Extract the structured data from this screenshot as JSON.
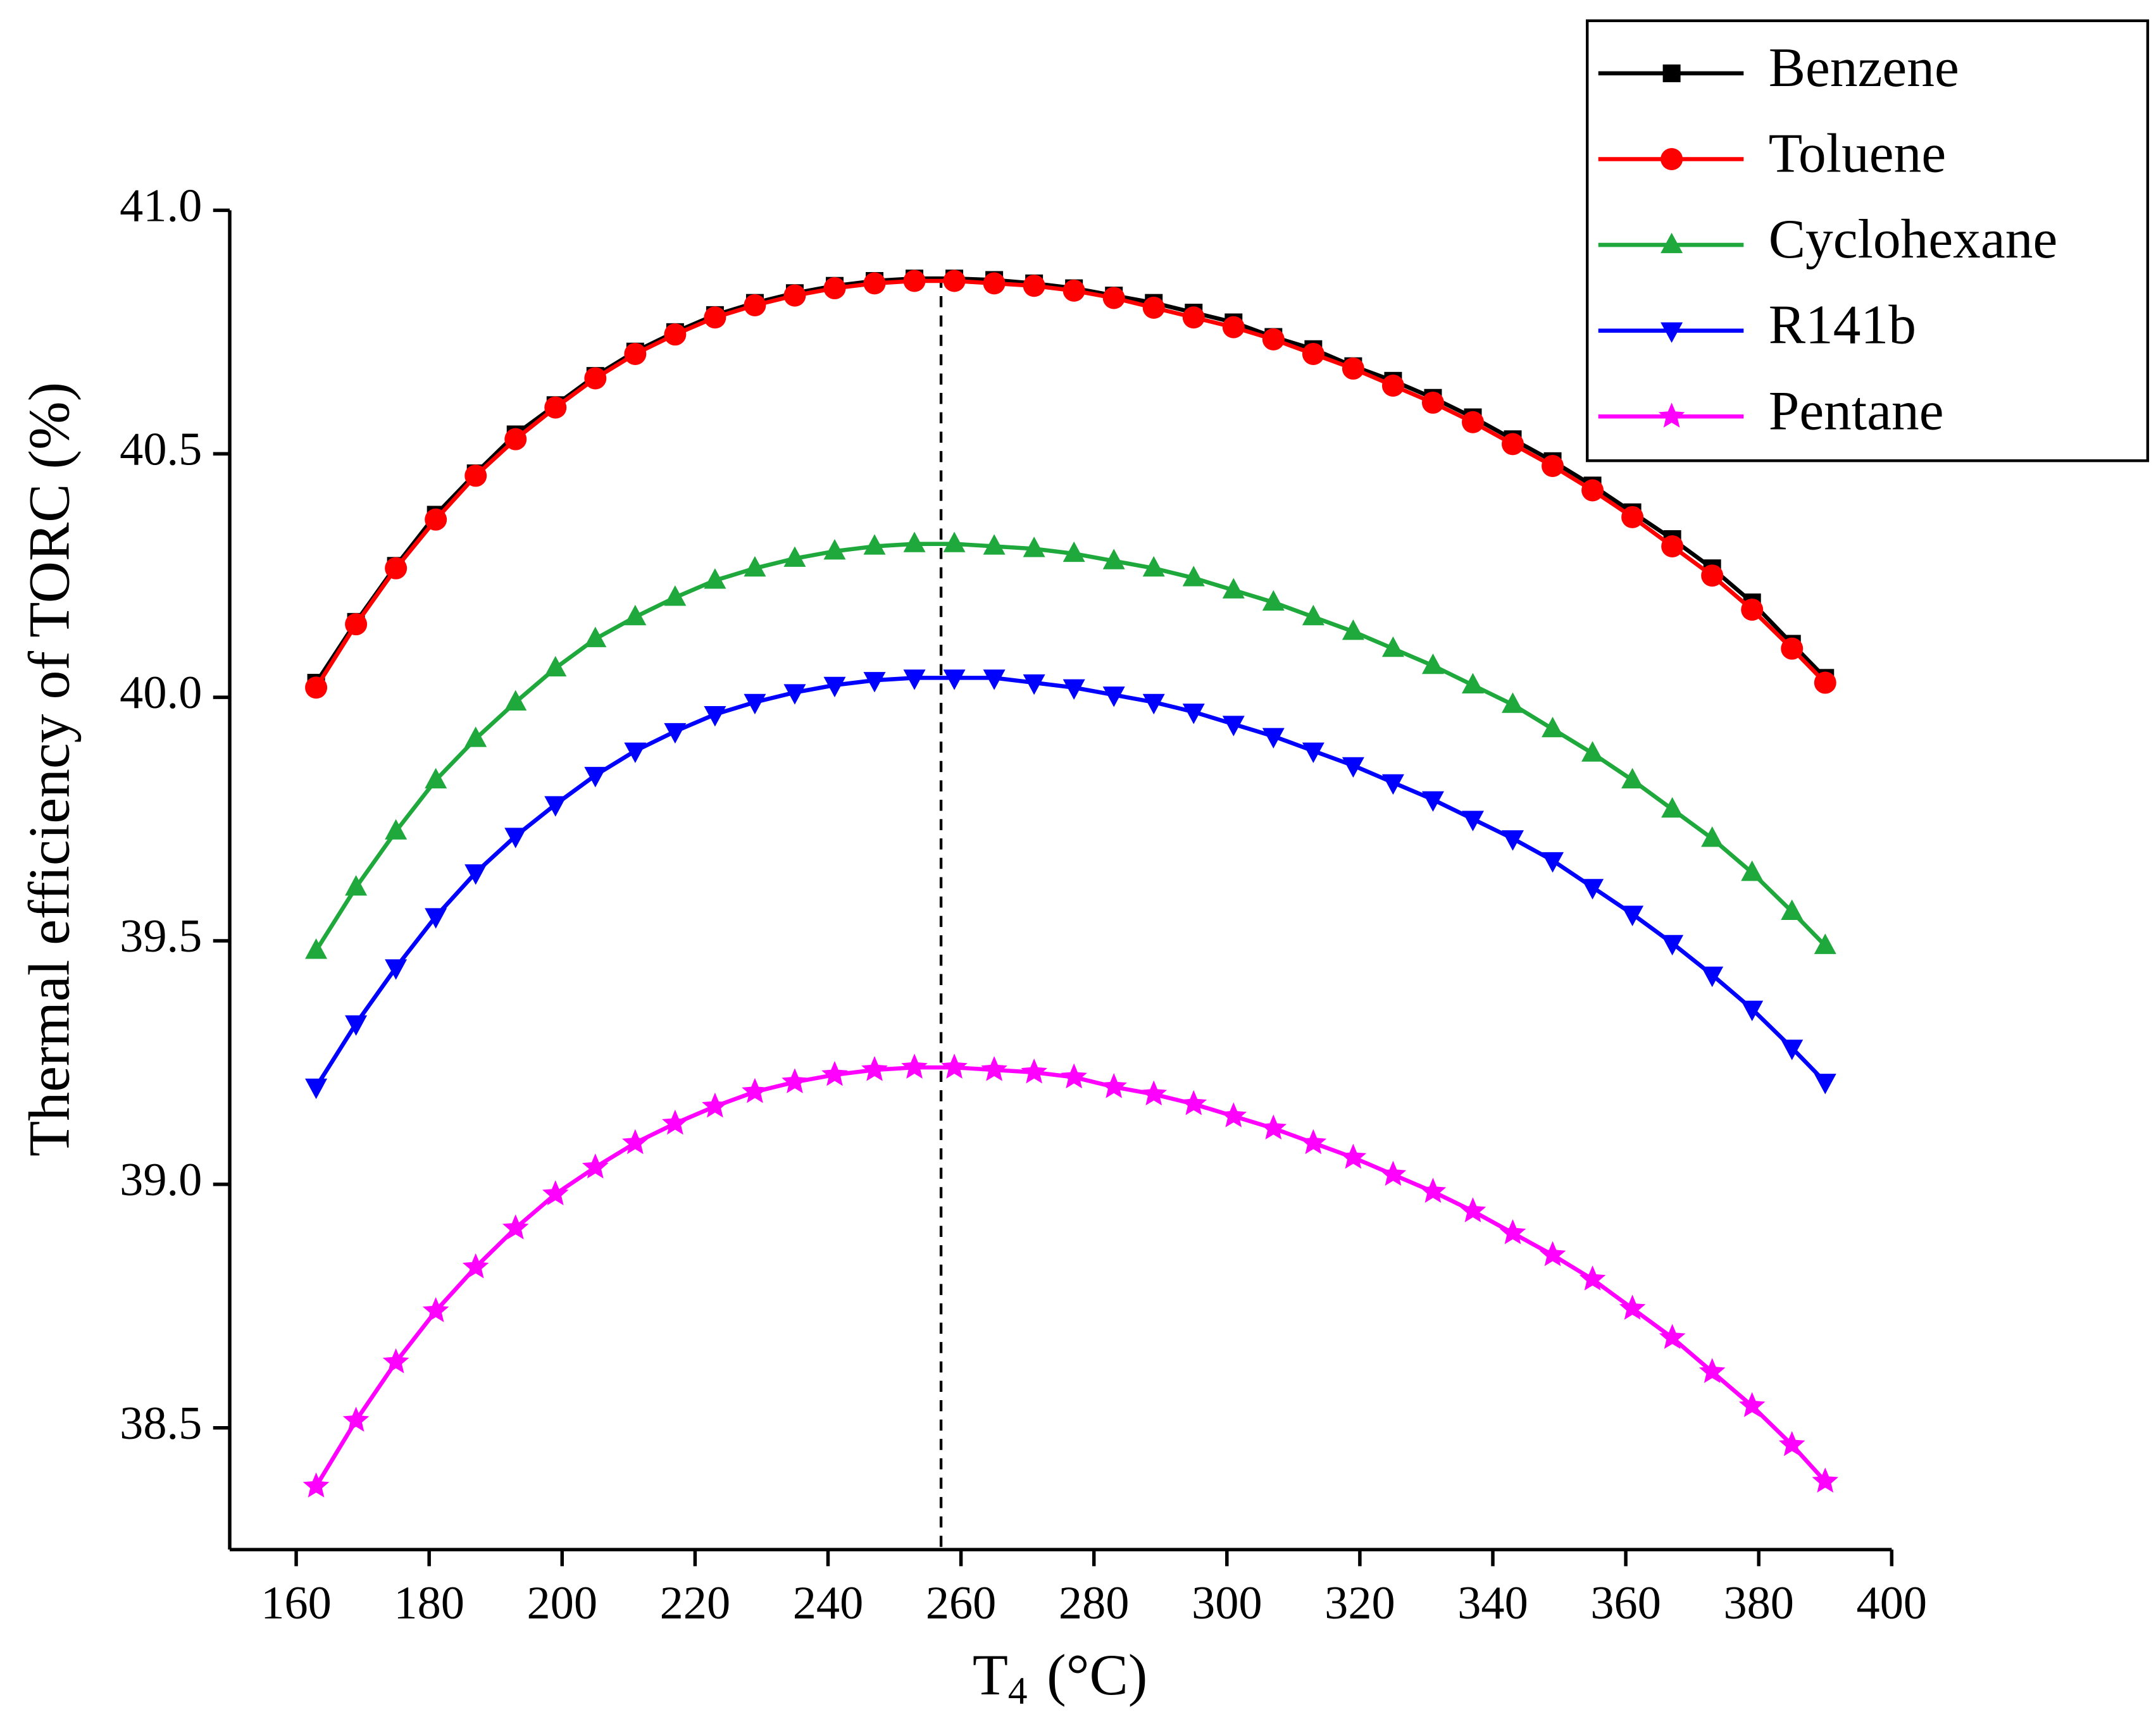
{
  "chart_data": {
    "type": "line",
    "xlabel": "T",
    "xlabel_sub": "4",
    "xlabel_unit": "(°C)",
    "ylabel": "Thermal efficiency of TORC (%)",
    "xlim": [
      150,
      400
    ],
    "xticks": [
      160,
      180,
      200,
      220,
      240,
      260,
      280,
      300,
      320,
      340,
      360,
      380,
      400
    ],
    "ylim": [
      38.25,
      41.0
    ],
    "yticks": [
      {
        "value": 38.5,
        "label": "38.5"
      },
      {
        "value": 39,
        "label": "39.0"
      },
      39.5,
      {
        "value": 40,
        "label": "40.0"
      },
      40.5,
      {
        "value": 41,
        "label": "41.0"
      }
    ],
    "legend": "top-right",
    "vline": {
      "x": 257,
      "color": "#000000",
      "style": "dashed"
    },
    "x": [
      163,
      169,
      175,
      181,
      187,
      193,
      199,
      205,
      211,
      217,
      223,
      229,
      235,
      241,
      247,
      253,
      259,
      265,
      271,
      277,
      283,
      289,
      295,
      301,
      307,
      313,
      319,
      325,
      331,
      337,
      343,
      349,
      355,
      361,
      367,
      373,
      379,
      385,
      390
    ],
    "series": [
      {
        "name": "Benzene",
        "color": "#000000",
        "marker": "square",
        "values": [
          40.03,
          40.155,
          40.27,
          40.375,
          40.46,
          40.54,
          40.6,
          40.66,
          40.71,
          40.75,
          40.785,
          40.81,
          40.83,
          40.845,
          40.855,
          40.86,
          40.86,
          40.857,
          40.85,
          40.84,
          40.825,
          40.81,
          40.79,
          40.77,
          40.74,
          40.715,
          40.68,
          40.65,
          40.615,
          40.575,
          40.53,
          40.485,
          40.435,
          40.38,
          40.325,
          40.265,
          40.195,
          40.11,
          40.04
        ]
      },
      {
        "name": "Toluene",
        "color": "#ff0000",
        "marker": "circle",
        "values": [
          40.02,
          40.15,
          40.265,
          40.365,
          40.455,
          40.53,
          40.595,
          40.655,
          40.705,
          40.745,
          40.78,
          40.805,
          40.825,
          40.84,
          40.85,
          40.855,
          40.855,
          40.85,
          40.845,
          40.835,
          40.82,
          40.8,
          40.78,
          40.76,
          40.735,
          40.705,
          40.675,
          40.64,
          40.605,
          40.565,
          40.52,
          40.475,
          40.425,
          40.37,
          40.31,
          40.25,
          40.18,
          40.1,
          40.03
        ]
      },
      {
        "name": "Cyclohexane",
        "color": "#1fa83c",
        "marker": "triangle-up",
        "values": [
          39.48,
          39.61,
          39.725,
          39.83,
          39.915,
          39.99,
          40.06,
          40.12,
          40.165,
          40.205,
          40.24,
          40.265,
          40.285,
          40.3,
          40.31,
          40.315,
          40.315,
          40.31,
          40.305,
          40.295,
          40.28,
          40.265,
          40.245,
          40.22,
          40.195,
          40.165,
          40.135,
          40.1,
          40.065,
          40.025,
          39.985,
          39.935,
          39.885,
          39.83,
          39.77,
          39.71,
          39.64,
          39.56,
          39.49
        ]
      },
      {
        "name": "R141b",
        "color": "#0000ff",
        "marker": "triangle-down",
        "values": [
          39.2,
          39.33,
          39.445,
          39.55,
          39.64,
          39.715,
          39.78,
          39.84,
          39.89,
          39.93,
          39.965,
          39.99,
          40.01,
          40.025,
          40.035,
          40.04,
          40.04,
          40.04,
          40.03,
          40.02,
          40.005,
          39.99,
          39.97,
          39.945,
          39.92,
          39.89,
          39.86,
          39.825,
          39.79,
          39.75,
          39.71,
          39.665,
          39.61,
          39.555,
          39.495,
          39.43,
          39.36,
          39.28,
          39.21
        ]
      },
      {
        "name": "Pentane",
        "color": "#ff00ff",
        "marker": "star",
        "values": [
          38.38,
          38.515,
          38.635,
          38.74,
          38.83,
          38.91,
          38.98,
          39.035,
          39.085,
          39.125,
          39.16,
          39.19,
          39.21,
          39.225,
          39.235,
          39.24,
          39.24,
          39.235,
          39.23,
          39.22,
          39.2,
          39.185,
          39.165,
          39.14,
          39.115,
          39.085,
          39.055,
          39.02,
          38.985,
          38.945,
          38.9,
          38.855,
          38.805,
          38.745,
          38.685,
          38.615,
          38.545,
          38.465,
          38.39
        ]
      }
    ]
  }
}
